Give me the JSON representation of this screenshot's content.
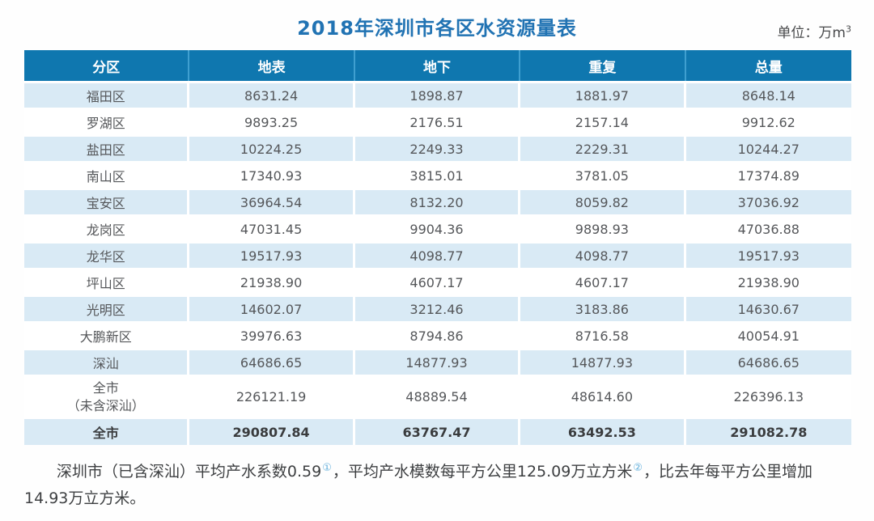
{
  "title": "2018年深圳市各区水资源量表",
  "unit": {
    "label": "单位：万m",
    "superscript": "3"
  },
  "colors": {
    "header_bg": "#0f77af",
    "header_divider": "#3f9fd0",
    "alt_row_bg": "#d9eaf5",
    "title_color": "#2173b3",
    "cell_text": "#55575a",
    "footnote_ref": "#64b0dc"
  },
  "chart_data": {
    "type": "table",
    "title": "2018年深圳市各区水资源量表",
    "unit": "万m3",
    "columns": [
      "分区",
      "地表",
      "地下",
      "重复",
      "总量"
    ],
    "rows": [
      {
        "style": "alt",
        "cells": [
          "福田区",
          "8631.24",
          "1898.87",
          "1881.97",
          "8648.14"
        ]
      },
      {
        "style": "plain",
        "cells": [
          "罗湖区",
          "9893.25",
          "2176.51",
          "2157.14",
          "9912.62"
        ]
      },
      {
        "style": "alt",
        "cells": [
          "盐田区",
          "10224.25",
          "2249.33",
          "2229.31",
          "10244.27"
        ]
      },
      {
        "style": "plain",
        "cells": [
          "南山区",
          "17340.93",
          "3815.01",
          "3781.05",
          "17374.89"
        ]
      },
      {
        "style": "alt",
        "cells": [
          "宝安区",
          "36964.54",
          "8132.20",
          "8059.82",
          "37036.92"
        ]
      },
      {
        "style": "plain",
        "cells": [
          "龙岗区",
          "47031.45",
          "9904.36",
          "9898.93",
          "47036.88"
        ]
      },
      {
        "style": "alt",
        "cells": [
          "龙华区",
          "19517.93",
          "4098.77",
          "4098.77",
          "19517.93"
        ]
      },
      {
        "style": "plain",
        "cells": [
          "坪山区",
          "21938.90",
          "4607.17",
          "4607.17",
          "21938.90"
        ]
      },
      {
        "style": "alt",
        "cells": [
          "光明区",
          "14602.07",
          "3212.46",
          "3183.86",
          "14630.67"
        ]
      },
      {
        "style": "plain",
        "cells": [
          "大鹏新区",
          "39976.63",
          "8794.86",
          "8716.58",
          "40054.91"
        ]
      },
      {
        "style": "alt",
        "cells": [
          "深汕",
          "64686.65",
          "14877.93",
          "14877.93",
          "64686.65"
        ]
      },
      {
        "style": "plain",
        "cells": [
          "全市\n（未含深汕）",
          "226121.19",
          "48889.54",
          "48614.60",
          "226396.13"
        ]
      },
      {
        "style": "total",
        "cells": [
          "全市",
          "290807.84",
          "63767.47",
          "63492.53",
          "291082.78"
        ]
      }
    ]
  },
  "footer": {
    "part1": "深圳市（已含深汕）平均产水系数0.59",
    "ref1": "①",
    "part2": "，平均产水模数每平方公里125.09万立方米",
    "ref2": "②",
    "part3": "，比去年每平方公里增加14.93万立方米。"
  }
}
